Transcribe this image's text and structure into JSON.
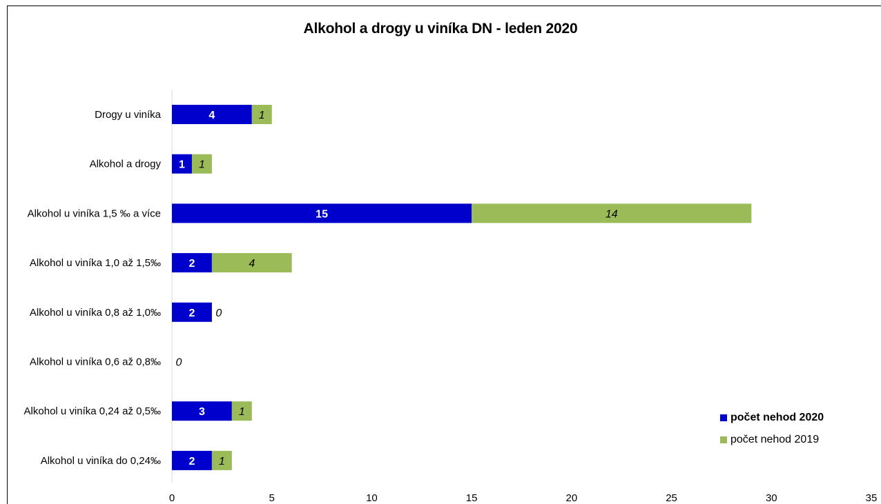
{
  "chart_data": {
    "type": "bar",
    "orientation": "horizontal",
    "stacked": true,
    "title": "Alkohol a drogy u viníka DN - leden 2020",
    "categories": [
      "Drogy u viníka",
      "Alkohol a drogy",
      "Alkohol u viníka 1,5 ‰ a více",
      "Alkohol u viníka 1,0 až 1,5‰",
      "Alkohol u viníka  0,8 až 1,0‰",
      "Alkohol u viníka  0,6 až 0,8‰",
      "Alkohol u viníka  0,24 až 0,5‰",
      "Alkohol u viníka do 0,24‰"
    ],
    "series": [
      {
        "name": "počet nehod 2020",
        "color": "#0000cc",
        "values": [
          4,
          1,
          15,
          2,
          2,
          0,
          3,
          2
        ]
      },
      {
        "name": "počet nehod 2019",
        "color": "#9bbb59",
        "values": [
          1,
          1,
          14,
          4,
          0,
          0,
          1,
          1
        ]
      }
    ],
    "xlim": [
      0,
      35
    ],
    "xticks": [
      "0",
      "5",
      "10",
      "15",
      "20",
      "25",
      "30",
      "35"
    ],
    "xlabel": "",
    "ylabel": "",
    "grid": false,
    "legend_position": "bottom-right"
  }
}
